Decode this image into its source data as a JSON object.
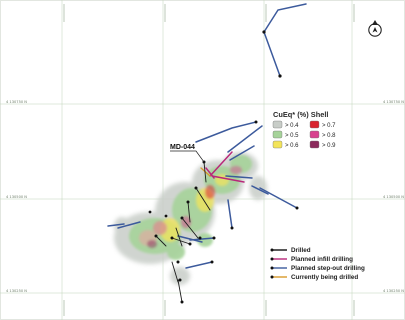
{
  "map": {
    "easting_labels_top": [
      "",
      "",
      "",
      ""
    ],
    "grid_labels": {
      "n_upper": "4 130750 N",
      "n_middle": "4 130500 N",
      "n_lower": "4 130250 N"
    },
    "hole_callout": "MD-044",
    "north_arrow": "north-arrow-icon"
  },
  "legend": {
    "title": "CuEq* (%) Shell",
    "shells": [
      {
        "label": "> 0.4",
        "color": "#c8cdc8"
      },
      {
        "label": "> 0.5",
        "color": "#a6d39a"
      },
      {
        "label": "> 0.6",
        "color": "#f3e45a"
      },
      {
        "label": "> 0.7",
        "color": "#d92430"
      },
      {
        "label": "> 0.8",
        "color": "#d8438f"
      },
      {
        "label": "> 0.9",
        "color": "#8b2a5c"
      }
    ],
    "drilling": [
      {
        "label": "Drilled",
        "color": "#111111"
      },
      {
        "label": "Planned infill drilling",
        "color": "#b8287a"
      },
      {
        "label": "Planned step-out drilling",
        "color": "#3c5a9c"
      },
      {
        "label": "Currently being drilled",
        "color": "#d99a2a"
      }
    ]
  }
}
